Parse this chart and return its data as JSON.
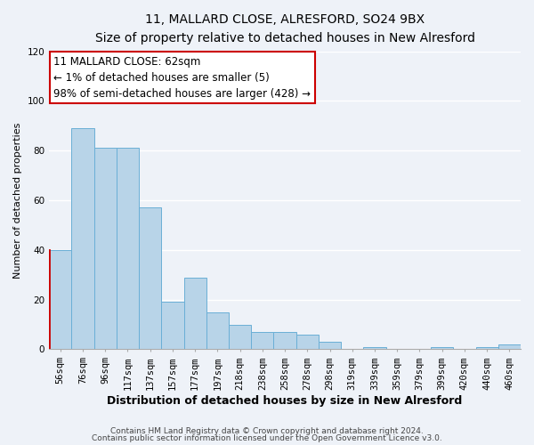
{
  "title": "11, MALLARD CLOSE, ALRESFORD, SO24 9BX",
  "subtitle": "Size of property relative to detached houses in New Alresford",
  "xlabel": "Distribution of detached houses by size in New Alresford",
  "ylabel": "Number of detached properties",
  "categories": [
    "56sqm",
    "76sqm",
    "96sqm",
    "117sqm",
    "137sqm",
    "157sqm",
    "177sqm",
    "197sqm",
    "218sqm",
    "238sqm",
    "258sqm",
    "278sqm",
    "298sqm",
    "319sqm",
    "339sqm",
    "359sqm",
    "379sqm",
    "399sqm",
    "420sqm",
    "440sqm",
    "460sqm"
  ],
  "values": [
    40,
    89,
    81,
    81,
    57,
    19,
    29,
    15,
    10,
    7,
    7,
    6,
    3,
    0,
    1,
    0,
    0,
    1,
    0,
    1,
    2
  ],
  "bar_color": "#b8d4e8",
  "bar_edge_color": "#6aafd6",
  "highlight_bar_index": 0,
  "highlight_edge_color": "#cc0000",
  "ylim": [
    0,
    120
  ],
  "yticks": [
    0,
    20,
    40,
    60,
    80,
    100,
    120
  ],
  "annotation_box_text": "11 MALLARD CLOSE: 62sqm\n← 1% of detached houses are smaller (5)\n98% of semi-detached houses are larger (428) →",
  "annotation_box_edge_color": "#cc0000",
  "footer_line1": "Contains HM Land Registry data © Crown copyright and database right 2024.",
  "footer_line2": "Contains public sector information licensed under the Open Government Licence v3.0.",
  "background_color": "#eef2f8",
  "grid_color": "#ffffff",
  "title_fontsize": 10,
  "subtitle_fontsize": 9,
  "xlabel_fontsize": 9,
  "ylabel_fontsize": 8,
  "tick_fontsize": 7.5,
  "annotation_fontsize": 8.5,
  "footer_fontsize": 6.5
}
